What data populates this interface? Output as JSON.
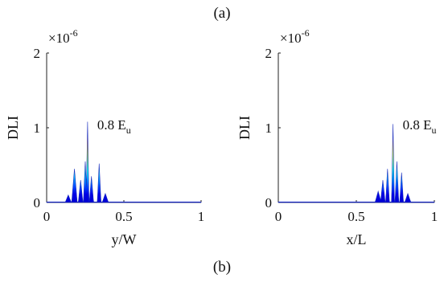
{
  "labels": {
    "top": "(a)",
    "bottom": "(b)"
  },
  "chart_data": [
    {
      "type": "area",
      "xlabel": "y/W",
      "ylabel": "DLI",
      "scale_label": "×10",
      "scale_exponent": "-6",
      "annotation_value": "0.8 E",
      "annotation_subscript": "u",
      "xlim": [
        0,
        1
      ],
      "ylim": [
        0,
        2
      ],
      "x_ticks": [
        "0",
        "0.5",
        "1"
      ],
      "y_ticks": [
        "0",
        "1",
        "2"
      ],
      "colormap": "jet",
      "peaks": [
        {
          "x": 0.18,
          "y": 0.45,
          "w": 0.018
        },
        {
          "x": 0.22,
          "y": 0.3,
          "w": 0.015
        },
        {
          "x": 0.25,
          "y": 0.55,
          "w": 0.012
        },
        {
          "x": 0.265,
          "y": 1.08,
          "w": 0.009
        },
        {
          "x": 0.29,
          "y": 0.35,
          "w": 0.014
        },
        {
          "x": 0.34,
          "y": 0.52,
          "w": 0.012
        },
        {
          "x": 0.38,
          "y": 0.12,
          "w": 0.02
        },
        {
          "x": 0.14,
          "y": 0.1,
          "w": 0.02
        }
      ]
    },
    {
      "type": "area",
      "xlabel": "x/L",
      "ylabel": "DLI",
      "scale_label": "×10",
      "scale_exponent": "-6",
      "annotation_value": "0.8 E",
      "annotation_subscript": "u",
      "xlim": [
        0,
        1
      ],
      "ylim": [
        0,
        2
      ],
      "x_ticks": [
        "0",
        "0.5",
        "1"
      ],
      "y_ticks": [
        "0",
        "1",
        "2"
      ],
      "colormap": "jet",
      "peaks": [
        {
          "x": 0.64,
          "y": 0.15,
          "w": 0.02
        },
        {
          "x": 0.67,
          "y": 0.3,
          "w": 0.015
        },
        {
          "x": 0.7,
          "y": 0.45,
          "w": 0.012
        },
        {
          "x": 0.735,
          "y": 1.05,
          "w": 0.009
        },
        {
          "x": 0.76,
          "y": 0.55,
          "w": 0.012
        },
        {
          "x": 0.79,
          "y": 0.4,
          "w": 0.012
        },
        {
          "x": 0.83,
          "y": 0.12,
          "w": 0.02
        }
      ]
    }
  ]
}
